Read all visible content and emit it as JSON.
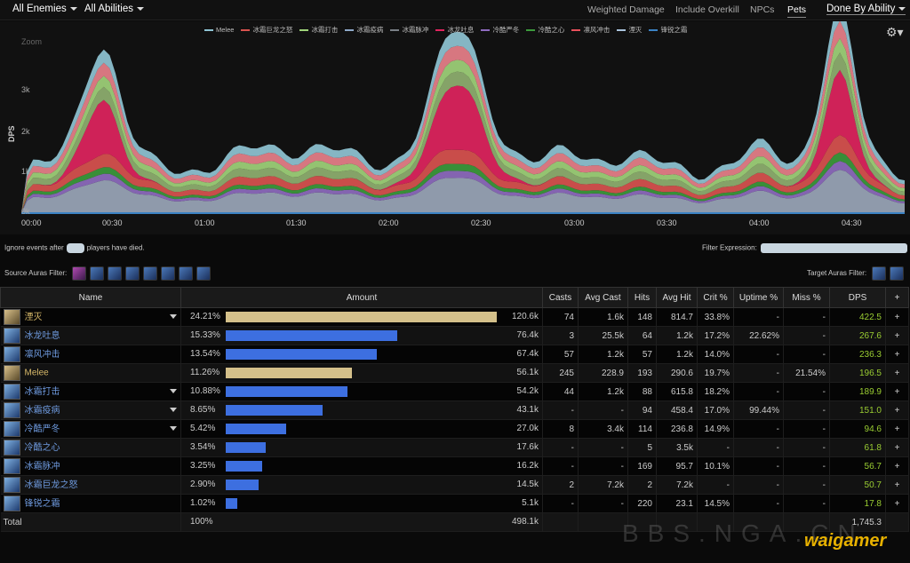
{
  "topbar": {
    "enemies": "All Enemies",
    "abilities": "All Abilities",
    "options": [
      "Weighted Damage",
      "Include Overkill",
      "NPCs",
      "Pets"
    ],
    "active_option": "Pets",
    "done_by": "Done By Ability"
  },
  "chart": {
    "zoom": "Zoom",
    "ylabel": "DPS",
    "yticks": [
      "3k",
      "2k",
      "1k",
      "0k"
    ],
    "xticks": [
      "00:00",
      "00:30",
      "01:00",
      "01:30",
      "02:00",
      "02:30",
      "03:00",
      "03:30",
      "04:00",
      "04:30"
    ],
    "legend": [
      {
        "name": "Melee",
        "color": "#8fc4d4"
      },
      {
        "name": "冰霜巨龙之怒",
        "color": "#d9534f"
      },
      {
        "name": "冰霜打击",
        "color": "#9fd37a"
      },
      {
        "name": "冰霜疫病",
        "color": "#8ea8c8"
      },
      {
        "name": "冰霜脉冲",
        "color": "#7a7f86"
      },
      {
        "name": "冰龙吐息",
        "color": "#e0245e"
      },
      {
        "name": "冷酷严冬",
        "color": "#8e6bbf"
      },
      {
        "name": "冷酷之心",
        "color": "#3c9a3c"
      },
      {
        "name": "凛风冲击",
        "color": "#e8505b"
      },
      {
        "name": "湮灭",
        "color": "#a9c3dc"
      },
      {
        "name": "锋锐之霜",
        "color": "#3b82c4"
      }
    ]
  },
  "controls": {
    "ignore_prefix": "Ignore events after",
    "ignore_suffix": "players have died.",
    "filter_label": "Filter Expression:",
    "source_label": "Source Auras Filter:",
    "target_label": "Target Auras Filter:"
  },
  "table": {
    "headers": [
      "Name",
      "Amount",
      "Casts",
      "Avg Cast",
      "Hits",
      "Avg Hit",
      "Crit %",
      "Uptime %",
      "Miss %",
      "DPS",
      "+"
    ],
    "rows": [
      {
        "name": "湮灭",
        "gold": true,
        "dd": true,
        "pct": "24.21%",
        "frac": 1.0,
        "bar": "#d4c08a",
        "amount": "120.6k",
        "casts": "74",
        "avg_cast": "1.6k",
        "hits": "148",
        "avg_hit": "814.7",
        "crit": "33.8%",
        "uptime": "-",
        "miss": "-",
        "dps": "422.5"
      },
      {
        "name": "冰龙吐息",
        "gold": false,
        "dd": false,
        "pct": "15.33%",
        "frac": 0.633,
        "bar": "#3d6fe0",
        "amount": "76.4k",
        "casts": "3",
        "avg_cast": "25.5k",
        "hits": "64",
        "avg_hit": "1.2k",
        "crit": "17.2%",
        "uptime": "22.62%",
        "miss": "-",
        "dps": "267.6"
      },
      {
        "name": "凛风冲击",
        "gold": false,
        "dd": false,
        "pct": "13.54%",
        "frac": 0.559,
        "bar": "#3d6fe0",
        "amount": "67.4k",
        "casts": "57",
        "avg_cast": "1.2k",
        "hits": "57",
        "avg_hit": "1.2k",
        "crit": "14.0%",
        "uptime": "-",
        "miss": "-",
        "dps": "236.3"
      },
      {
        "name": "Melee",
        "gold": true,
        "dd": false,
        "pct": "11.26%",
        "frac": 0.465,
        "bar": "#d4c08a",
        "amount": "56.1k",
        "casts": "245",
        "avg_cast": "228.9",
        "hits": "193",
        "avg_hit": "290.6",
        "crit": "19.7%",
        "uptime": "-",
        "miss": "21.54%",
        "dps": "196.5"
      },
      {
        "name": "冰霜打击",
        "gold": false,
        "dd": true,
        "pct": "10.88%",
        "frac": 0.449,
        "bar": "#3d6fe0",
        "amount": "54.2k",
        "casts": "44",
        "avg_cast": "1.2k",
        "hits": "88",
        "avg_hit": "615.8",
        "crit": "18.2%",
        "uptime": "-",
        "miss": "-",
        "dps": "189.9"
      },
      {
        "name": "冰霜疫病",
        "gold": false,
        "dd": true,
        "pct": "8.65%",
        "frac": 0.357,
        "bar": "#3d6fe0",
        "amount": "43.1k",
        "casts": "-",
        "avg_cast": "-",
        "hits": "94",
        "avg_hit": "458.4",
        "crit": "17.0%",
        "uptime": "99.44%",
        "miss": "-",
        "dps": "151.0"
      },
      {
        "name": "冷酷严冬",
        "gold": false,
        "dd": true,
        "pct": "5.42%",
        "frac": 0.224,
        "bar": "#3d6fe0",
        "amount": "27.0k",
        "casts": "8",
        "avg_cast": "3.4k",
        "hits": "114",
        "avg_hit": "236.8",
        "crit": "14.9%",
        "uptime": "-",
        "miss": "-",
        "dps": "94.6"
      },
      {
        "name": "冷酷之心",
        "gold": false,
        "dd": false,
        "pct": "3.54%",
        "frac": 0.146,
        "bar": "#3d6fe0",
        "amount": "17.6k",
        "casts": "-",
        "avg_cast": "-",
        "hits": "5",
        "avg_hit": "3.5k",
        "crit": "-",
        "uptime": "-",
        "miss": "-",
        "dps": "61.8"
      },
      {
        "name": "冰霜脉冲",
        "gold": false,
        "dd": false,
        "pct": "3.25%",
        "frac": 0.134,
        "bar": "#3d6fe0",
        "amount": "16.2k",
        "casts": "-",
        "avg_cast": "-",
        "hits": "169",
        "avg_hit": "95.7",
        "crit": "10.1%",
        "uptime": "-",
        "miss": "-",
        "dps": "56.7"
      },
      {
        "name": "冰霜巨龙之怒",
        "gold": false,
        "dd": false,
        "pct": "2.90%",
        "frac": 0.12,
        "bar": "#3d6fe0",
        "amount": "14.5k",
        "casts": "2",
        "avg_cast": "7.2k",
        "hits": "2",
        "avg_hit": "7.2k",
        "crit": "-",
        "uptime": "-",
        "miss": "-",
        "dps": "50.7"
      },
      {
        "name": "锋锐之霜",
        "gold": false,
        "dd": false,
        "pct": "1.02%",
        "frac": 0.042,
        "bar": "#3d6fe0",
        "amount": "5.1k",
        "casts": "-",
        "avg_cast": "-",
        "hits": "220",
        "avg_hit": "23.1",
        "crit": "14.5%",
        "uptime": "-",
        "miss": "-",
        "dps": "17.8"
      }
    ],
    "total": {
      "name": "Total",
      "pct": "100%",
      "amount": "498.1k",
      "dps": "1,745.3"
    }
  },
  "watermark": {
    "site": "BBS.NGA.CN",
    "brand": "waigamer"
  }
}
